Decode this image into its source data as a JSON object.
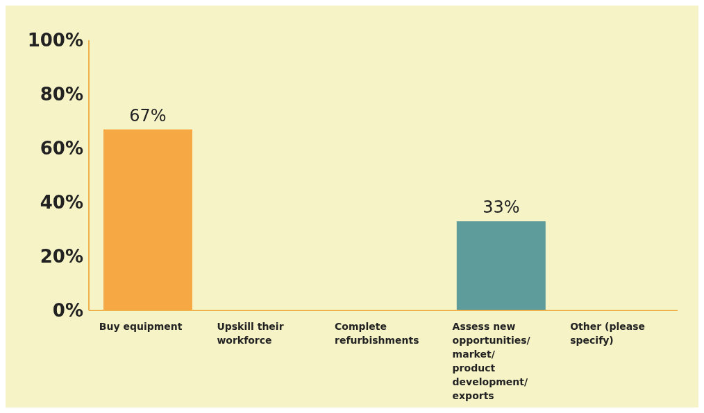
{
  "chart_data": {
    "type": "bar",
    "categories": [
      "Buy equipment",
      "Upskill their workforce",
      "Complete refurbishments",
      "Assess new opportunities/ market/ product development/ exports",
      "Other (please specify)"
    ],
    "values": [
      67,
      null,
      null,
      33,
      null
    ],
    "colors": [
      "#f5a843",
      "#f5a843",
      "#f5a843",
      "#5e9b9b",
      "#5e9b9b"
    ],
    "value_labels": [
      "67%",
      null,
      null,
      "33%",
      null
    ],
    "ylim": [
      0,
      100
    ],
    "yticks": [
      {
        "value": 0,
        "label": "0%"
      },
      {
        "value": 20,
        "label": "20%"
      },
      {
        "value": 40,
        "label": "40%"
      },
      {
        "value": 60,
        "label": "60%"
      },
      {
        "value": 80,
        "label": "80%"
      },
      {
        "value": 100,
        "label": "100%"
      }
    ],
    "grid": false,
    "legend": false
  }
}
